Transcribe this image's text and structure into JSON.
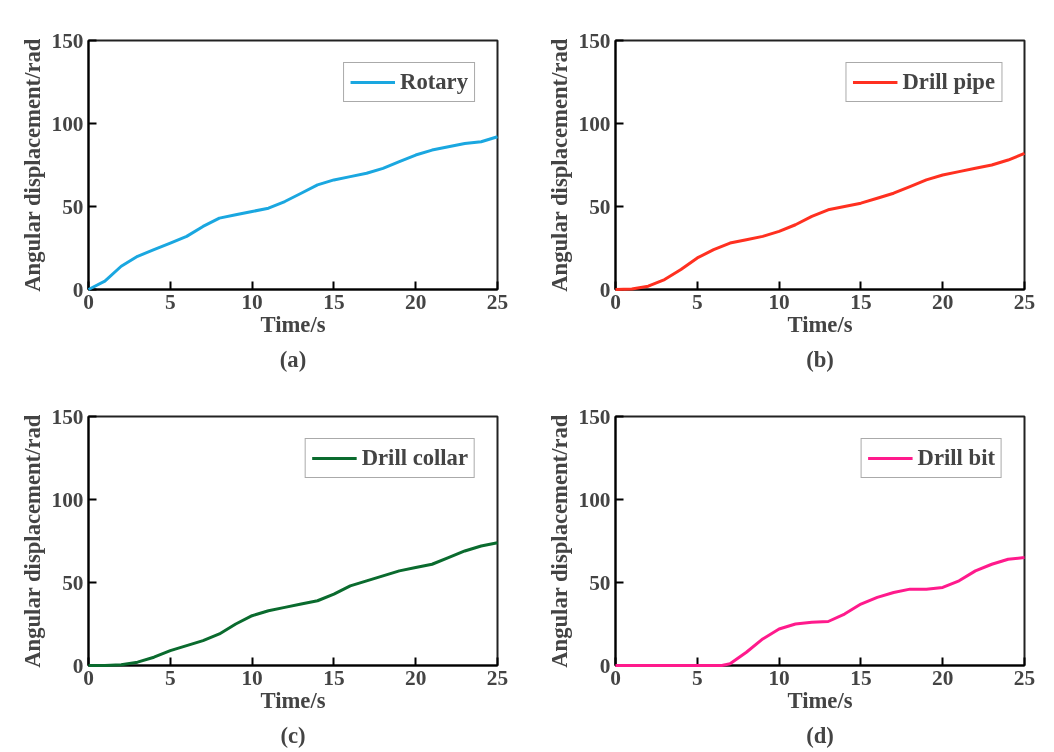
{
  "chart_data": [
    {
      "type": "line",
      "xlabel": "Time/s",
      "ylabel": "Angular displacement/rad",
      "annotations": [
        "(a)"
      ],
      "legend": "top right",
      "xlim": [
        0,
        25
      ],
      "ylim": [
        0,
        150
      ],
      "xticks": [
        0,
        5,
        10,
        15,
        20,
        25
      ],
      "yticks": [
        0,
        50,
        100,
        150
      ],
      "grid": false,
      "x": [
        0,
        1,
        2,
        3,
        4,
        5,
        6,
        7,
        8,
        9,
        10,
        11,
        12,
        13,
        14,
        15,
        16,
        17,
        18,
        19,
        20,
        21,
        22,
        23,
        24,
        25
      ],
      "series": [
        {
          "name": "Rotary",
          "color": "#1aa7e0",
          "values": [
            0,
            5,
            14,
            20,
            24,
            28,
            32,
            38,
            43,
            45,
            47,
            49,
            53,
            58,
            63,
            66,
            68,
            70,
            73,
            77,
            81,
            84,
            86,
            88,
            89,
            92
          ]
        }
      ]
    },
    {
      "type": "line",
      "xlabel": "Time/s",
      "ylabel": "Angular displacement/rad",
      "annotations": [
        "(b)"
      ],
      "legend": "top right",
      "xlim": [
        0,
        25
      ],
      "ylim": [
        0,
        150
      ],
      "xticks": [
        0,
        5,
        10,
        15,
        20,
        25
      ],
      "yticks": [
        0,
        50,
        100,
        150
      ],
      "grid": false,
      "x": [
        0,
        1,
        2,
        3,
        4,
        5,
        6,
        7,
        8,
        9,
        10,
        11,
        12,
        13,
        14,
        15,
        16,
        17,
        18,
        19,
        20,
        21,
        22,
        23,
        24,
        25
      ],
      "series": [
        {
          "name": "Drill pipe",
          "color": "#ff3020",
          "values": [
            0,
            0.3,
            2,
            6,
            12,
            19,
            24,
            28,
            30,
            32,
            35,
            39,
            44,
            48,
            50,
            52,
            55,
            58,
            62,
            66,
            69,
            71,
            73,
            75,
            78,
            82
          ]
        }
      ]
    },
    {
      "type": "line",
      "xlabel": "Time/s",
      "ylabel": "Angular displacement/rad",
      "annotations": [
        "(c)"
      ],
      "legend": "top right",
      "xlim": [
        0,
        25
      ],
      "ylim": [
        0,
        150
      ],
      "xticks": [
        0,
        5,
        10,
        15,
        20,
        25
      ],
      "yticks": [
        0,
        50,
        100,
        150
      ],
      "grid": false,
      "x": [
        0,
        1,
        2,
        3,
        4,
        5,
        6,
        7,
        8,
        9,
        10,
        11,
        12,
        13,
        14,
        15,
        16,
        17,
        18,
        19,
        20,
        21,
        22,
        23,
        24,
        25
      ],
      "series": [
        {
          "name": "Drill collar",
          "color": "#0a6b2e",
          "values": [
            0,
            0,
            0.5,
            2,
            5,
            9,
            12,
            15,
            19,
            25,
            30,
            33,
            35,
            37,
            39,
            43,
            48,
            51,
            54,
            57,
            59,
            61,
            65,
            69,
            72,
            74
          ]
        }
      ]
    },
    {
      "type": "line",
      "xlabel": "Time/s",
      "ylabel": "Angular displacement/rad",
      "annotations": [
        "(d)"
      ],
      "legend": "top right",
      "xlim": [
        0,
        25
      ],
      "ylim": [
        0,
        150
      ],
      "xticks": [
        0,
        5,
        10,
        15,
        20,
        25
      ],
      "yticks": [
        0,
        50,
        100,
        150
      ],
      "grid": false,
      "x": [
        0,
        1,
        2,
        3,
        4,
        5,
        6,
        6.5,
        7,
        8,
        9,
        10,
        11,
        12,
        13,
        14,
        15,
        16,
        17,
        18,
        19,
        20,
        21,
        22,
        23,
        24,
        25
      ],
      "series": [
        {
          "name": "Drill bit",
          "color": "#ff1a8c",
          "values": [
            0,
            0,
            0,
            0,
            0,
            0,
            0,
            0,
            1,
            8,
            16,
            22,
            25,
            26,
            26.5,
            31,
            37,
            41,
            44,
            46,
            46,
            47,
            51,
            57,
            61,
            64,
            65
          ]
        }
      ]
    }
  ]
}
